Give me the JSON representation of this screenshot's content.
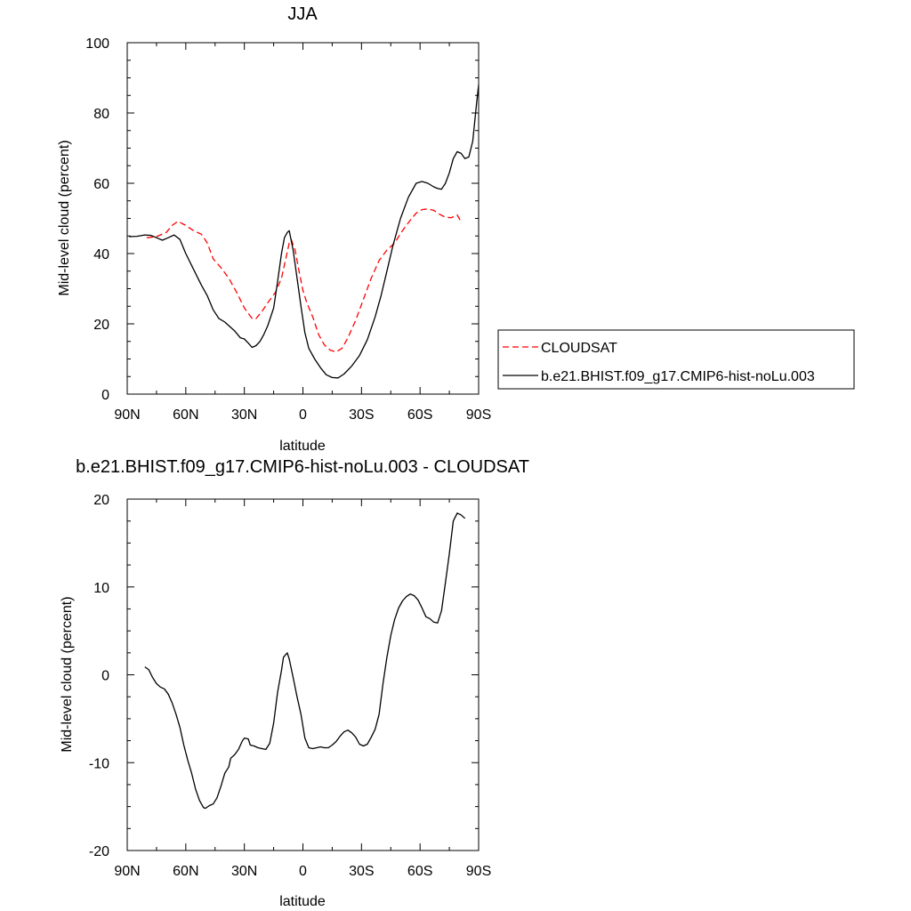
{
  "chart_data": [
    {
      "type": "line",
      "title": "JJA",
      "xlabel": "latitude",
      "ylabel": "Mid-level cloud (percent)",
      "xlim": [
        90,
        -90
      ],
      "ylim": [
        0,
        100
      ],
      "xticks": [
        {
          "value": 90,
          "label": "90N"
        },
        {
          "value": 60,
          "label": "60N"
        },
        {
          "value": 30,
          "label": "30N"
        },
        {
          "value": 0,
          "label": "0"
        },
        {
          "value": -30,
          "label": "30S"
        },
        {
          "value": -60,
          "label": "60S"
        },
        {
          "value": -90,
          "label": "90S"
        }
      ],
      "yticks": [
        0,
        20,
        40,
        60,
        80,
        100
      ],
      "legend_position": "right",
      "series": [
        {
          "name": "CLOUDSAT",
          "color": "#ff0000",
          "style": "dashed",
          "points": [
            [
              80,
              44.5
            ],
            [
              75,
              44.8
            ],
            [
              70,
              46
            ],
            [
              67,
              48
            ],
            [
              64,
              49.2
            ],
            [
              60,
              48
            ],
            [
              56,
              46.5
            ],
            [
              52,
              45.5
            ],
            [
              49,
              43
            ],
            [
              46,
              38.5
            ],
            [
              42,
              36
            ],
            [
              38,
              33
            ],
            [
              34,
              29
            ],
            [
              30,
              24.5
            ],
            [
              26,
              21.5
            ],
            [
              24,
              21.5
            ],
            [
              21,
              23.5
            ],
            [
              18,
              26
            ],
            [
              14,
              29
            ],
            [
              11,
              33
            ],
            [
              9,
              38
            ],
            [
              7,
              43
            ],
            [
              6,
              44
            ],
            [
              4,
              41
            ],
            [
              2,
              35
            ],
            [
              0,
              29.5
            ],
            [
              -2,
              26
            ],
            [
              -5,
              22
            ],
            [
              -8,
              17
            ],
            [
              -11,
              14
            ],
            [
              -14,
              12.5
            ],
            [
              -17,
              12
            ],
            [
              -20,
              13
            ],
            [
              -23,
              16
            ],
            [
              -27,
              21
            ],
            [
              -31,
              27
            ],
            [
              -35,
              33
            ],
            [
              -39,
              38
            ],
            [
              -43,
              41
            ],
            [
              -47,
              43
            ],
            [
              -51,
              46.5
            ],
            [
              -55,
              49.5
            ],
            [
              -58,
              51.5
            ],
            [
              -61,
              52.5
            ],
            [
              -64,
              52.7
            ],
            [
              -67,
              52.3
            ],
            [
              -70,
              51.2
            ],
            [
              -73,
              50.3
            ],
            [
              -76,
              50.2
            ],
            [
              -79,
              51
            ],
            [
              -81,
              49
            ]
          ]
        },
        {
          "name": "b.e21.BHIST.f09_g17.CMIP6-hist-noLu.003",
          "color": "#000000",
          "style": "solid",
          "points": [
            [
              89,
              44.8
            ],
            [
              85,
              44.9
            ],
            [
              81,
              45.3
            ],
            [
              78,
              45.2
            ],
            [
              75,
              44.5
            ],
            [
              72,
              43.8
            ],
            [
              69,
              44.5
            ],
            [
              66,
              45.3
            ],
            [
              63,
              44
            ],
            [
              60,
              40
            ],
            [
              56,
              35.5
            ],
            [
              52,
              31
            ],
            [
              49,
              28
            ],
            [
              46,
              24
            ],
            [
              43,
              21.5
            ],
            [
              40,
              20.5
            ],
            [
              38,
              19.5
            ],
            [
              35,
              18
            ],
            [
              32,
              16
            ],
            [
              30,
              15.7
            ],
            [
              28,
              14.5
            ],
            [
              26,
              13.3
            ],
            [
              24,
              13.8
            ],
            [
              22,
              15
            ],
            [
              20,
              17
            ],
            [
              18,
              19.5
            ],
            [
              15,
              24.5
            ],
            [
              13,
              32
            ],
            [
              11,
              40
            ],
            [
              9.5,
              44.5
            ],
            [
              8,
              46
            ],
            [
              7,
              46.5
            ],
            [
              5,
              41
            ],
            [
              3,
              33
            ],
            [
              1,
              25
            ],
            [
              -1,
              17.5
            ],
            [
              -3,
              13
            ],
            [
              -6,
              10
            ],
            [
              -9,
              7.5
            ],
            [
              -12,
              5.5
            ],
            [
              -15,
              4.7
            ],
            [
              -18,
              4.6
            ],
            [
              -21,
              5.7
            ],
            [
              -25,
              8
            ],
            [
              -29,
              11
            ],
            [
              -33,
              15.5
            ],
            [
              -37,
              22
            ],
            [
              -40,
              28
            ],
            [
              -43,
              35
            ],
            [
              -46,
              42
            ],
            [
              -50,
              50
            ],
            [
              -54,
              56
            ],
            [
              -58,
              60
            ],
            [
              -61,
              60.5
            ],
            [
              -64,
              60
            ],
            [
              -67,
              59
            ],
            [
              -69,
              58.5
            ],
            [
              -71,
              58.3
            ],
            [
              -73,
              60
            ],
            [
              -75,
              63
            ],
            [
              -77,
              67
            ],
            [
              -79,
              69
            ],
            [
              -81,
              68.5
            ],
            [
              -83,
              67
            ],
            [
              -85,
              67.5
            ],
            [
              -87,
              72
            ],
            [
              -89,
              83
            ],
            [
              -90,
              88
            ]
          ]
        }
      ]
    },
    {
      "type": "line",
      "title": "b.e21.BHIST.f09_g17.CMIP6-hist-noLu.003 - CLOUDSAT",
      "xlabel": "latitude",
      "ylabel": "Mid-level cloud (percent)",
      "xlim": [
        90,
        -90
      ],
      "ylim": [
        -20,
        20
      ],
      "xticks": [
        {
          "value": 90,
          "label": "90N"
        },
        {
          "value": 60,
          "label": "60N"
        },
        {
          "value": 30,
          "label": "30N"
        },
        {
          "value": 0,
          "label": "0"
        },
        {
          "value": -30,
          "label": "30S"
        },
        {
          "value": -60,
          "label": "60S"
        },
        {
          "value": -90,
          "label": "90S"
        }
      ],
      "yticks": [
        -20,
        -10,
        0,
        10,
        20
      ],
      "series": [
        {
          "color": "#000000",
          "style": "solid",
          "points": [
            [
              81,
              0.9
            ],
            [
              79,
              0.6
            ],
            [
              77,
              -0.3
            ],
            [
              75,
              -1
            ],
            [
              73,
              -1.4
            ],
            [
              71,
              -1.6
            ],
            [
              69,
              -2.2
            ],
            [
              67,
              -3.2
            ],
            [
              65,
              -4.5
            ],
            [
              63,
              -6
            ],
            [
              61,
              -8
            ],
            [
              59,
              -9.7
            ],
            [
              57,
              -11.2
            ],
            [
              55,
              -13
            ],
            [
              53,
              -14.3
            ],
            [
              51,
              -15.1
            ],
            [
              50,
              -15.2
            ],
            [
              48,
              -14.9
            ],
            [
              46,
              -14.7
            ],
            [
              44,
              -14
            ],
            [
              42,
              -12.7
            ],
            [
              40,
              -11.2
            ],
            [
              38,
              -10.5
            ],
            [
              37,
              -9.5
            ],
            [
              35,
              -9.1
            ],
            [
              33,
              -8.5
            ],
            [
              31,
              -7.5
            ],
            [
              30,
              -7.2
            ],
            [
              28,
              -7.3
            ],
            [
              27,
              -8
            ],
            [
              25,
              -8.1
            ],
            [
              23,
              -8.3
            ],
            [
              21,
              -8.4
            ],
            [
              19,
              -8.5
            ],
            [
              17,
              -7.8
            ],
            [
              15,
              -5.5
            ],
            [
              13,
              -2
            ],
            [
              11,
              0.5
            ],
            [
              10,
              2
            ],
            [
              8,
              2.5
            ],
            [
              7,
              1.8
            ],
            [
              5,
              -0.3
            ],
            [
              3,
              -2.5
            ],
            [
              1,
              -4.5
            ],
            [
              -1,
              -7.2
            ],
            [
              -3,
              -8.3
            ],
            [
              -5,
              -8.4
            ],
            [
              -7,
              -8.3
            ],
            [
              -9,
              -8.2
            ],
            [
              -11,
              -8.3
            ],
            [
              -13,
              -8.3
            ],
            [
              -15,
              -8
            ],
            [
              -17,
              -7.6
            ],
            [
              -19,
              -7
            ],
            [
              -21,
              -6.5
            ],
            [
              -23,
              -6.3
            ],
            [
              -25,
              -6.6
            ],
            [
              -27,
              -7.1
            ],
            [
              -29,
              -7.9
            ],
            [
              -31,
              -8.1
            ],
            [
              -33,
              -7.9
            ],
            [
              -35,
              -7.1
            ],
            [
              -37,
              -6.2
            ],
            [
              -39,
              -4.5
            ],
            [
              -41,
              -1
            ],
            [
              -43,
              2
            ],
            [
              -45,
              4.5
            ],
            [
              -47,
              6.3
            ],
            [
              -49,
              7.6
            ],
            [
              -51,
              8.4
            ],
            [
              -53,
              8.9
            ],
            [
              -55,
              9.2
            ],
            [
              -57,
              9
            ],
            [
              -59,
              8.5
            ],
            [
              -61,
              7.6
            ],
            [
              -63,
              6.6
            ],
            [
              -65,
              6.4
            ],
            [
              -67,
              6
            ],
            [
              -69,
              5.9
            ],
            [
              -71,
              7.3
            ],
            [
              -73,
              10.5
            ],
            [
              -75,
              13.8
            ],
            [
              -77,
              17.5
            ],
            [
              -79,
              18.4
            ],
            [
              -81,
              18.2
            ],
            [
              -83,
              17.8
            ]
          ]
        }
      ]
    }
  ]
}
